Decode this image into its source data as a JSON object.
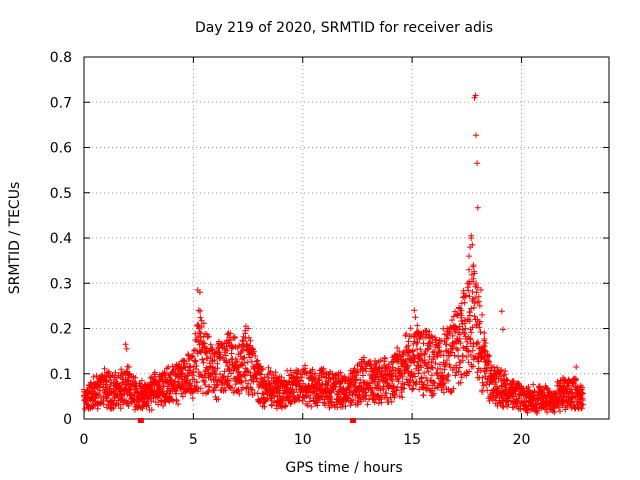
{
  "chart_data": {
    "type": "scatter",
    "title": "Day 219 of 2020, SRMTID for receiver adis",
    "xlabel": "GPS time / hours",
    "ylabel": "SRMTID / TECUs",
    "xlim": [
      0,
      24
    ],
    "ylim": [
      0,
      0.8
    ],
    "xticks": [
      "0",
      "5",
      "10",
      "15",
      "20"
    ],
    "yticks": [
      "0",
      "0.1",
      "0.2",
      "0.3",
      "0.4",
      "0.5",
      "0.6",
      "0.7",
      "0.8"
    ],
    "grid": true,
    "marker": "plus",
    "color": "#ff0000",
    "baseline_profile": [
      [
        0.0,
        0.045
      ],
      [
        0.5,
        0.06
      ],
      [
        1.0,
        0.07
      ],
      [
        1.5,
        0.065
      ],
      [
        2.0,
        0.075
      ],
      [
        2.5,
        0.05
      ],
      [
        3.0,
        0.06
      ],
      [
        3.5,
        0.07
      ],
      [
        4.0,
        0.075
      ],
      [
        4.5,
        0.09
      ],
      [
        5.0,
        0.11
      ],
      [
        5.3,
        0.16
      ],
      [
        5.6,
        0.13
      ],
      [
        6.0,
        0.11
      ],
      [
        6.5,
        0.13
      ],
      [
        7.0,
        0.12
      ],
      [
        7.5,
        0.13
      ],
      [
        8.0,
        0.08
      ],
      [
        8.5,
        0.07
      ],
      [
        9.0,
        0.06
      ],
      [
        9.5,
        0.07
      ],
      [
        10.0,
        0.075
      ],
      [
        10.5,
        0.07
      ],
      [
        11.0,
        0.07
      ],
      [
        11.5,
        0.065
      ],
      [
        12.0,
        0.065
      ],
      [
        12.5,
        0.08
      ],
      [
        13.0,
        0.09
      ],
      [
        13.5,
        0.085
      ],
      [
        14.0,
        0.09
      ],
      [
        14.5,
        0.11
      ],
      [
        15.0,
        0.14
      ],
      [
        15.5,
        0.13
      ],
      [
        16.0,
        0.12
      ],
      [
        16.5,
        0.13
      ],
      [
        17.0,
        0.16
      ],
      [
        17.5,
        0.2
      ],
      [
        17.7,
        0.25
      ],
      [
        18.0,
        0.19
      ],
      [
        18.3,
        0.12
      ],
      [
        18.6,
        0.08
      ],
      [
        19.0,
        0.07
      ],
      [
        19.5,
        0.06
      ],
      [
        20.0,
        0.045
      ],
      [
        20.5,
        0.045
      ],
      [
        21.0,
        0.045
      ],
      [
        21.5,
        0.045
      ],
      [
        22.0,
        0.06
      ],
      [
        22.5,
        0.06
      ],
      [
        22.8,
        0.045
      ]
    ],
    "sample_interval_hours": 0.02,
    "highlights": [
      {
        "x": 5.2,
        "y": 0.285
      },
      {
        "x": 5.3,
        "y": 0.28
      },
      {
        "x": 5.25,
        "y": 0.24
      },
      {
        "x": 1.9,
        "y": 0.165
      },
      {
        "x": 1.95,
        "y": 0.155
      },
      {
        "x": 7.4,
        "y": 0.205
      },
      {
        "x": 7.5,
        "y": 0.2
      },
      {
        "x": 6.6,
        "y": 0.19
      },
      {
        "x": 15.1,
        "y": 0.24
      },
      {
        "x": 15.15,
        "y": 0.225
      },
      {
        "x": 15.3,
        "y": 0.19
      },
      {
        "x": 16.6,
        "y": 0.2
      },
      {
        "x": 17.3,
        "y": 0.21
      },
      {
        "x": 17.45,
        "y": 0.27
      },
      {
        "x": 17.55,
        "y": 0.3
      },
      {
        "x": 17.6,
        "y": 0.33
      },
      {
        "x": 17.6,
        "y": 0.36
      },
      {
        "x": 17.65,
        "y": 0.38
      },
      {
        "x": 17.7,
        "y": 0.4
      },
      {
        "x": 17.7,
        "y": 0.405
      },
      {
        "x": 17.75,
        "y": 0.385
      },
      {
        "x": 17.8,
        "y": 0.31
      },
      {
        "x": 17.8,
        "y": 0.34
      },
      {
        "x": 17.85,
        "y": 0.71
      },
      {
        "x": 17.9,
        "y": 0.715
      },
      {
        "x": 17.92,
        "y": 0.627
      },
      {
        "x": 17.97,
        "y": 0.565
      },
      {
        "x": 18.0,
        "y": 0.467
      },
      {
        "x": 18.0,
        "y": 0.29
      },
      {
        "x": 18.05,
        "y": 0.27
      },
      {
        "x": 18.1,
        "y": 0.25
      },
      {
        "x": 18.15,
        "y": 0.285
      },
      {
        "x": 18.2,
        "y": 0.23
      },
      {
        "x": 18.3,
        "y": 0.19
      },
      {
        "x": 19.1,
        "y": 0.238
      },
      {
        "x": 19.15,
        "y": 0.198
      },
      {
        "x": 22.5,
        "y": 0.115
      }
    ],
    "axis_markers": [
      {
        "x": 2.6,
        "y": 0
      },
      {
        "x": 12.3,
        "y": 0
      }
    ]
  }
}
